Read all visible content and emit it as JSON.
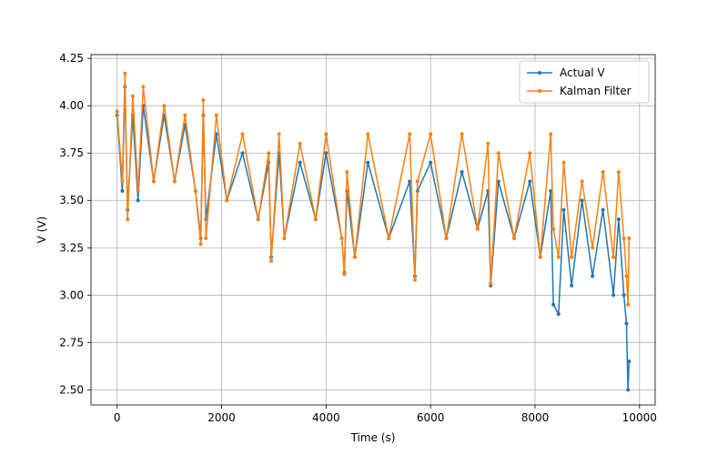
{
  "chart_data": {
    "type": "line",
    "title": "",
    "xlabel": "Time (s)",
    "ylabel": "V (V)",
    "xlim": [
      -500,
      10300
    ],
    "ylim": [
      2.42,
      4.27
    ],
    "xticks": [
      0,
      2000,
      4000,
      6000,
      8000,
      10000
    ],
    "yticks": [
      2.5,
      2.75,
      3.0,
      3.25,
      3.5,
      3.75,
      4.0,
      4.25
    ],
    "xtick_labels": [
      "0",
      "2000",
      "4000",
      "6000",
      "8000",
      "10000"
    ],
    "ytick_labels": [
      "2.50",
      "2.75",
      "3.00",
      "3.25",
      "3.50",
      "3.75",
      "4.00",
      "4.25"
    ],
    "grid": true,
    "legend_position": "top-right",
    "series": [
      {
        "name": "Actual V",
        "color": "#1f77b4",
        "marker": "circle",
        "x": [
          0,
          100,
          150,
          200,
          300,
          400,
          500,
          700,
          900,
          1100,
          1300,
          1500,
          1600,
          1650,
          1700,
          1900,
          2100,
          2400,
          2700,
          2900,
          2950,
          3100,
          3200,
          3500,
          3800,
          4000,
          4300,
          4350,
          4400,
          4550,
          4800,
          5200,
          5600,
          5700,
          5750,
          6000,
          6300,
          6600,
          6900,
          7100,
          7150,
          7300,
          7600,
          7900,
          8100,
          8300,
          8350,
          8450,
          8550,
          8700,
          8900,
          9100,
          9300,
          9500,
          9600,
          9700,
          9750,
          9780,
          9800
        ],
        "y": [
          3.95,
          3.55,
          4.1,
          3.45,
          3.95,
          3.5,
          4.0,
          3.6,
          3.95,
          3.6,
          3.9,
          3.55,
          3.3,
          3.95,
          3.4,
          3.85,
          3.5,
          3.75,
          3.4,
          3.7,
          3.2,
          3.75,
          3.3,
          3.7,
          3.4,
          3.75,
          3.3,
          3.12,
          3.55,
          3.2,
          3.7,
          3.3,
          3.6,
          3.1,
          3.55,
          3.7,
          3.3,
          3.65,
          3.35,
          3.55,
          3.05,
          3.6,
          3.3,
          3.6,
          3.2,
          3.55,
          2.95,
          2.9,
          3.45,
          3.05,
          3.5,
          3.1,
          3.45,
          3.0,
          3.4,
          3.0,
          2.85,
          2.5,
          2.65
        ]
      },
      {
        "name": "Kalman Filter",
        "color": "#ff7f0e",
        "marker": "circle",
        "x": [
          0,
          100,
          150,
          200,
          300,
          400,
          500,
          700,
          900,
          1100,
          1300,
          1500,
          1600,
          1650,
          1700,
          1900,
          2100,
          2400,
          2700,
          2900,
          2950,
          3100,
          3200,
          3500,
          3800,
          4000,
          4300,
          4350,
          4400,
          4550,
          4800,
          5200,
          5600,
          5700,
          5750,
          6000,
          6300,
          6600,
          6900,
          7100,
          7150,
          7300,
          7600,
          7900,
          8100,
          8300,
          8350,
          8450,
          8550,
          8700,
          8900,
          9100,
          9300,
          9500,
          9600,
          9700,
          9750,
          9780,
          9800
        ],
        "y": [
          3.97,
          3.6,
          4.17,
          3.4,
          4.05,
          3.55,
          4.1,
          3.6,
          4.0,
          3.6,
          3.95,
          3.55,
          3.27,
          4.03,
          3.3,
          3.95,
          3.5,
          3.85,
          3.4,
          3.75,
          3.18,
          3.85,
          3.3,
          3.8,
          3.4,
          3.85,
          3.3,
          3.11,
          3.65,
          3.2,
          3.85,
          3.3,
          3.85,
          3.08,
          3.6,
          3.85,
          3.3,
          3.85,
          3.35,
          3.8,
          3.06,
          3.75,
          3.3,
          3.75,
          3.2,
          3.85,
          3.35,
          3.2,
          3.7,
          3.2,
          3.6,
          3.25,
          3.65,
          3.2,
          3.65,
          3.3,
          3.1,
          2.95,
          3.3
        ]
      }
    ]
  }
}
